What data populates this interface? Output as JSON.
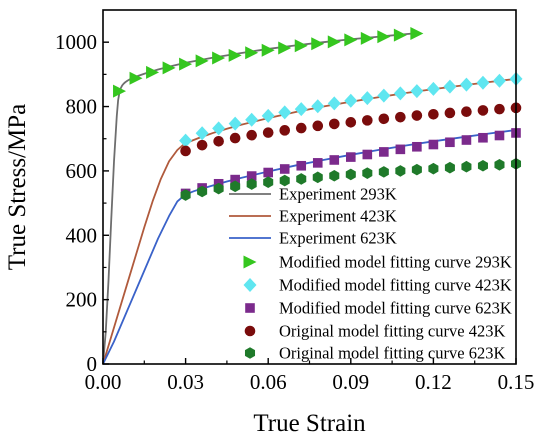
{
  "chart_data": {
    "type": "line",
    "xlabel": "True Strain",
    "ylabel": "True Stress/MPa",
    "xlim": [
      0,
      0.15
    ],
    "ylim": [
      0,
      1100
    ],
    "xticks": [
      0,
      0.03,
      0.06,
      0.09,
      0.12,
      0.15
    ],
    "xtick_labels": [
      "0.00",
      "0.03",
      "0.06",
      "0.09",
      "0.12",
      "0.15"
    ],
    "yticks": [
      0,
      200,
      400,
      600,
      800,
      1000
    ],
    "ytick_labels": [
      "0",
      "200",
      "400",
      "600",
      "800",
      "1000"
    ],
    "grid": false,
    "legend_position": "bottom-right",
    "series": [
      {
        "name": "Experiment 293K",
        "kind": "line",
        "color": "#6e6e6e",
        "x": [
          0,
          0.001,
          0.002,
          0.003,
          0.004,
          0.005,
          0.0055,
          0.006,
          0.0065,
          0.007,
          0.0075,
          0.008,
          0.009,
          0.01,
          0.012,
          0.015,
          0.02,
          0.025,
          0.03,
          0.04,
          0.05,
          0.06,
          0.07,
          0.08,
          0.09,
          0.1,
          0.11,
          0.114
        ],
        "y": [
          0,
          100,
          260,
          450,
          630,
          770,
          820,
          845,
          858,
          866,
          871,
          875,
          881,
          886,
          893,
          902,
          915,
          926,
          936,
          952,
          966,
          979,
          990,
          1000,
          1009,
          1017,
          1025,
          1028
        ]
      },
      {
        "name": "Experiment 423K",
        "kind": "line",
        "color": "#b05a3c",
        "x": [
          0,
          0.003,
          0.006,
          0.009,
          0.012,
          0.015,
          0.018,
          0.021,
          0.024,
          0.027,
          0.029,
          0.0305,
          0.032,
          0.035,
          0.04,
          0.045,
          0.05,
          0.06,
          0.07,
          0.08,
          0.09,
          0.1,
          0.11,
          0.12,
          0.13,
          0.14,
          0.15
        ],
        "y": [
          0,
          85,
          170,
          255,
          340,
          425,
          505,
          575,
          630,
          665,
          680,
          686,
          693,
          703,
          718,
          731,
          743,
          764,
          783,
          800,
          815,
          829,
          842,
          854,
          865,
          876,
          886
        ]
      },
      {
        "name": "Experiment 623K",
        "kind": "line",
        "color": "#3a62c9",
        "x": [
          0,
          0.004,
          0.008,
          0.012,
          0.016,
          0.02,
          0.024,
          0.027,
          0.029,
          0.031,
          0.033,
          0.036,
          0.04,
          0.045,
          0.05,
          0.06,
          0.07,
          0.08,
          0.09,
          0.1,
          0.11,
          0.12,
          0.13,
          0.14,
          0.15
        ],
        "y": [
          0,
          70,
          150,
          230,
          310,
          390,
          460,
          505,
          520,
          530,
          537,
          545,
          555,
          567,
          578,
          598,
          617,
          634,
          650,
          665,
          679,
          692,
          704,
          716,
          727
        ]
      },
      {
        "name": "Modified model fitting curve 293K",
        "kind": "marker",
        "marker": "triangle-right",
        "color": "#35c61f",
        "x": [
          0.006,
          0.012,
          0.018,
          0.024,
          0.03,
          0.036,
          0.042,
          0.048,
          0.054,
          0.06,
          0.066,
          0.072,
          0.078,
          0.084,
          0.09,
          0.096,
          0.102,
          0.108,
          0.114
        ],
        "y": [
          848,
          888,
          906,
          920,
          932,
          942,
          951,
          959,
          967,
          975,
          982,
          989,
          995,
          1001,
          1007,
          1012,
          1017,
          1022,
          1027
        ]
      },
      {
        "name": "Modified model fitting curve 423K",
        "kind": "marker",
        "marker": "diamond",
        "color": "#5fe6f0",
        "x": [
          0.03,
          0.036,
          0.042,
          0.048,
          0.054,
          0.06,
          0.066,
          0.072,
          0.078,
          0.084,
          0.09,
          0.096,
          0.102,
          0.108,
          0.114,
          0.12,
          0.126,
          0.132,
          0.138,
          0.144,
          0.15
        ],
        "y": [
          694,
          717,
          732,
          747,
          759,
          771,
          782,
          792,
          801,
          810,
          818,
          826,
          834,
          841,
          848,
          855,
          862,
          868,
          874,
          880,
          886
        ]
      },
      {
        "name": "Modified model fitting curve 623K",
        "kind": "marker",
        "marker": "square",
        "color": "#7b2a8c",
        "x": [
          0.03,
          0.036,
          0.042,
          0.048,
          0.054,
          0.06,
          0.066,
          0.072,
          0.078,
          0.084,
          0.09,
          0.096,
          0.102,
          0.108,
          0.114,
          0.12,
          0.126,
          0.132,
          0.138,
          0.144,
          0.15
        ],
        "y": [
          530,
          547,
          560,
          573,
          584,
          595,
          606,
          616,
          625,
          634,
          643,
          651,
          659,
          667,
          675,
          682,
          689,
          696,
          703,
          710,
          718
        ]
      },
      {
        "name": "Original model fitting curve 423K",
        "kind": "marker",
        "marker": "circle",
        "color": "#7a0c0c",
        "x": [
          0.03,
          0.036,
          0.042,
          0.048,
          0.054,
          0.06,
          0.066,
          0.072,
          0.078,
          0.084,
          0.09,
          0.096,
          0.102,
          0.108,
          0.114,
          0.12,
          0.126,
          0.132,
          0.138,
          0.144,
          0.15
        ],
        "y": [
          662,
          680,
          692,
          702,
          711,
          719,
          726,
          733,
          740,
          746,
          751,
          757,
          762,
          767,
          772,
          776,
          780,
          784,
          788,
          792,
          796
        ]
      },
      {
        "name": "Original model fitting curve 623K",
        "kind": "marker",
        "marker": "hexagon",
        "color": "#1f7a2a",
        "x": [
          0.03,
          0.036,
          0.042,
          0.048,
          0.054,
          0.06,
          0.066,
          0.072,
          0.078,
          0.084,
          0.09,
          0.096,
          0.102,
          0.108,
          0.114,
          0.12,
          0.126,
          0.132,
          0.138,
          0.144,
          0.15
        ],
        "y": [
          525,
          536,
          545,
          552,
          559,
          565,
          570,
          575,
          580,
          585,
          589,
          593,
          597,
          600,
          604,
          607,
          610,
          613,
          616,
          619,
          622
        ]
      }
    ]
  }
}
